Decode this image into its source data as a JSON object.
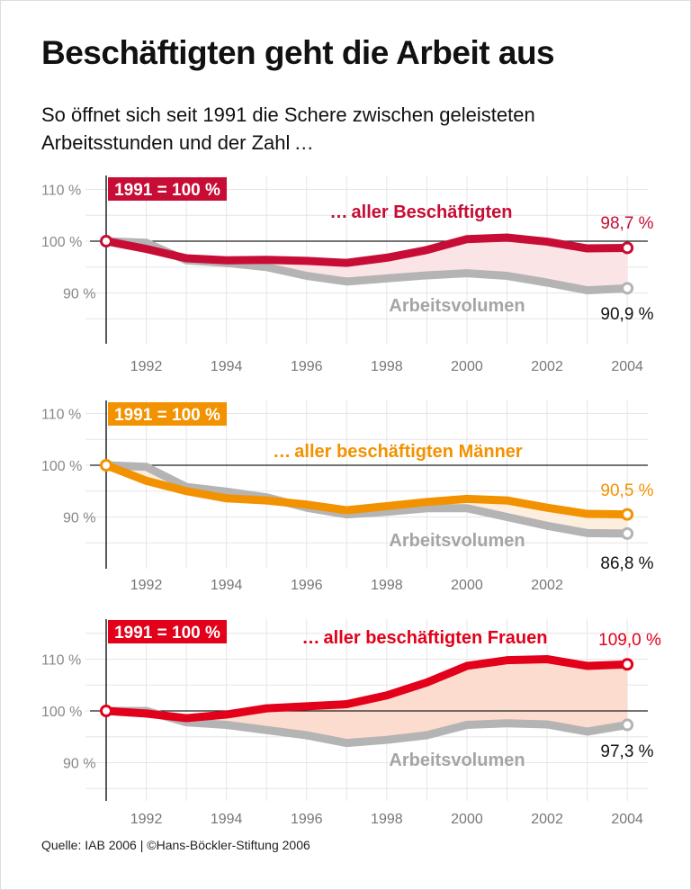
{
  "title": "Beschäftigten geht die Arbeit aus",
  "subtitle": "So öffnet sich seit 1991 die Schere zwischen geleisteten Arbeitsstunden und der Zahl …",
  "source": "Quelle: IAB 2006 | ©Hans-Böckler-Stiftung 2006",
  "colors": {
    "gray": "#b4b4b4",
    "grid": "#e6e6e6"
  },
  "chart_data": [
    {
      "type": "line",
      "badge": "1991 = 100 %",
      "accent": "#c70d35",
      "fill": "#fbe4e6",
      "x": [
        1991,
        1992,
        1993,
        1994,
        1995,
        1996,
        1997,
        1998,
        1999,
        2000,
        2001,
        2002,
        2003,
        2004
      ],
      "xticks": [
        "1992",
        "1994",
        "1996",
        "1998",
        "2000",
        "2002",
        "2004"
      ],
      "yticks": [
        "110 %",
        "100 %",
        "90 %"
      ],
      "ylim": [
        84,
        114
      ],
      "series": [
        {
          "name": "… aller Beschäftigten",
          "values": [
            100,
            98.5,
            96.7,
            96.3,
            96.4,
            96.2,
            95.8,
            96.8,
            98.3,
            100.4,
            100.7,
            99.9,
            98.6,
            98.7
          ],
          "end_label": "98,7 %"
        },
        {
          "name": "Arbeitsvolumen",
          "values": [
            100,
            99.7,
            96.3,
            95.8,
            95.0,
            93.3,
            92.2,
            92.8,
            93.4,
            93.8,
            93.3,
            92.0,
            90.5,
            90.9
          ],
          "end_label": "90,9 %"
        }
      ]
    },
    {
      "type": "line",
      "badge": "1991 = 100 %",
      "accent": "#f39200",
      "fill": "#fdeedd",
      "x": [
        1991,
        1992,
        1993,
        1994,
        1995,
        1996,
        1997,
        1998,
        1999,
        2000,
        2001,
        2002,
        2003,
        2004
      ],
      "xticks": [
        "1992",
        "1994",
        "1996",
        "1998",
        "2000",
        "2002"
      ],
      "yticks": [
        "110 %",
        "100 %",
        "90 %"
      ],
      "ylim": [
        84,
        114
      ],
      "series": [
        {
          "name": "… aller beschäftigten Männer",
          "values": [
            100,
            97.0,
            95.0,
            93.6,
            93.2,
            92.4,
            91.3,
            92.1,
            92.9,
            93.5,
            93.2,
            91.8,
            90.6,
            90.5
          ],
          "end_label": "90,5 %"
        },
        {
          "name": "Arbeitsvolumen",
          "values": [
            100,
            99.7,
            95.8,
            94.9,
            93.8,
            91.8,
            90.5,
            91.0,
            91.7,
            91.7,
            90.0,
            88.3,
            86.9,
            86.8
          ],
          "end_label": "86,8 %"
        }
      ]
    },
    {
      "type": "line",
      "badge": "1991 = 100 %",
      "accent": "#e2001a",
      "fill": "#fbdccf",
      "x": [
        1991,
        1992,
        1993,
        1994,
        1995,
        1996,
        1997,
        1998,
        1999,
        2000,
        2001,
        2002,
        2003,
        2004
      ],
      "xticks": [
        "1992",
        "1994",
        "1996",
        "1998",
        "2000",
        "2002",
        "2004"
      ],
      "yticks": [
        "110 %",
        "100 %",
        "90 %"
      ],
      "ylim": [
        84,
        116
      ],
      "series": [
        {
          "name": "… aller beschäftigten Frauen",
          "values": [
            100,
            99.5,
            98.6,
            99.3,
            100.5,
            100.9,
            101.3,
            103.0,
            105.5,
            108.7,
            109.8,
            110.0,
            108.7,
            109.0
          ],
          "end_label": "109,0 %"
        },
        {
          "name": "Arbeitsvolumen",
          "values": [
            100,
            100.0,
            97.8,
            97.3,
            96.3,
            95.3,
            93.8,
            94.4,
            95.3,
            97.3,
            97.6,
            97.4,
            96.0,
            97.3
          ],
          "end_label": "97,3 %"
        }
      ]
    }
  ]
}
